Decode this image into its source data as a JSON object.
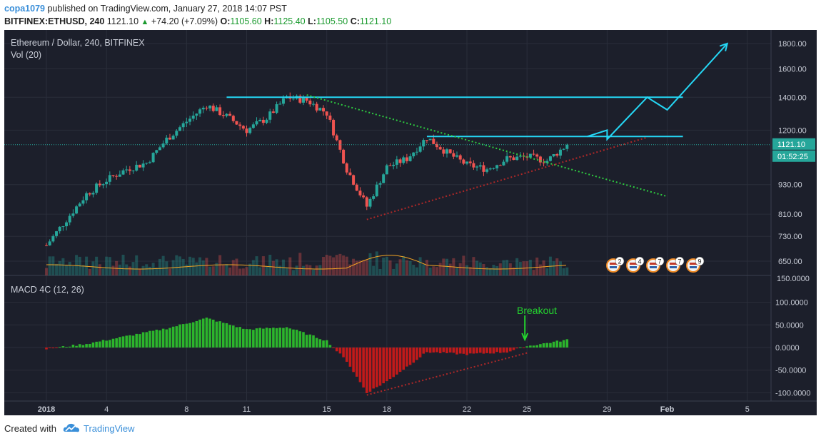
{
  "header": {
    "author": "copa1079",
    "published": "published on TradingView.com, January 27, 2018 14:07 PST",
    "symbol": "BITFINEX:ETHUSD, 240",
    "last": "1121.10",
    "change": "+74.20 (+7.09%)",
    "o_label": "O:",
    "o_val": "1105.60",
    "h_label": "H:",
    "h_val": "1125.40",
    "l_label": "L:",
    "l_val": "1105.50",
    "c_label": "C:",
    "c_val": "1121.10"
  },
  "colors": {
    "bg": "#1c1f2b",
    "up": "#26a69a",
    "down": "#ef5350",
    "cyan": "#25d7f5",
    "green_text": "#24d42f",
    "macd_pos": "#2cb52c",
    "macd_neg": "#c21a1a",
    "vol_ma": "#f5a623"
  },
  "footer": {
    "created": "Created with",
    "brand": "TradingView"
  },
  "chart_data": [
    {
      "type": "candlestick",
      "title": "Ethereum / Dollar, 240, BITFINEX",
      "subtitle": "Vol (20)",
      "y_scale": "log",
      "y_ticks": [
        "1800.00",
        "1600.00",
        "1400.00",
        "1200.00",
        "1121.10",
        "930.00",
        "810.00",
        "730.00",
        "650.00"
      ],
      "last_price": "1121.10",
      "countdown": "01:52:25",
      "x_ticks": [
        "2018",
        "4",
        "8",
        "11",
        "15",
        "18",
        "22",
        "25",
        "29",
        "Feb",
        "5"
      ],
      "series": [
        {
          "name": "ETHUSD",
          "x": [
            "2018-01-01",
            "2018-01-02",
            "2018-01-03",
            "2018-01-04",
            "2018-01-05",
            "2018-01-06",
            "2018-01-07",
            "2018-01-08",
            "2018-01-09",
            "2018-01-10",
            "2018-01-11",
            "2018-01-12",
            "2018-01-13",
            "2018-01-14",
            "2018-01-15",
            "2018-01-16",
            "2018-01-17",
            "2018-01-18",
            "2018-01-19",
            "2018-01-20",
            "2018-01-21",
            "2018-01-22",
            "2018-01-23",
            "2018-01-24",
            "2018-01-25",
            "2018-01-26",
            "2018-01-27"
          ],
          "close": [
            700,
            790,
            890,
            950,
            1000,
            1030,
            1150,
            1250,
            1350,
            1280,
            1200,
            1270,
            1400,
            1380,
            1300,
            1000,
            840,
            1010,
            1050,
            1160,
            1080,
            1020,
            1000,
            1050,
            1060,
            1040,
            1121
          ]
        }
      ],
      "annotations": [
        {
          "type": "horizontal-line",
          "price": 1400
        },
        {
          "type": "horizontal-line",
          "price": 1165
        },
        {
          "type": "trendline-dotted",
          "from": [
            "2018-01-14",
            1415
          ],
          "to": [
            "2018-02-01",
            880
          ]
        },
        {
          "type": "trendline-dotted",
          "from": [
            "2018-01-17",
            790
          ],
          "to": [
            "2018-01-31",
            1160
          ]
        },
        {
          "type": "projection-arrow",
          "points": [
            [
              "2018-01-28",
              1165
            ],
            [
              "2018-01-29",
              1200
            ],
            [
              "2018-01-29",
              1150
            ],
            [
              "2018-01-31",
              1400
            ],
            [
              "2018-02-01",
              1320
            ],
            [
              "2018-02-04",
              1800
            ]
          ]
        }
      ],
      "event_badges": [
        "2",
        "4",
        "7",
        "7",
        "9"
      ]
    },
    {
      "type": "bar",
      "title": "MACD 4C (12, 26)",
      "y_ticks": [
        "100.0000",
        "50.0000",
        "0.0000",
        "-50.0000",
        "-100.0000"
      ],
      "annotations": [
        {
          "type": "label",
          "text": "Breakout"
        }
      ],
      "series": [
        {
          "name": "MACD",
          "x": [
            "2018-01-01",
            "2018-01-03",
            "2018-01-05",
            "2018-01-07",
            "2018-01-09",
            "2018-01-11",
            "2018-01-13",
            "2018-01-15",
            "2018-01-16",
            "2018-01-17",
            "2018-01-18",
            "2018-01-20",
            "2018-01-22",
            "2018-01-24",
            "2018-01-25",
            "2018-01-27"
          ],
          "values": [
            -3,
            8,
            25,
            42,
            65,
            40,
            45,
            15,
            -30,
            -100,
            -75,
            -10,
            -15,
            -10,
            3,
            17
          ]
        }
      ]
    }
  ]
}
